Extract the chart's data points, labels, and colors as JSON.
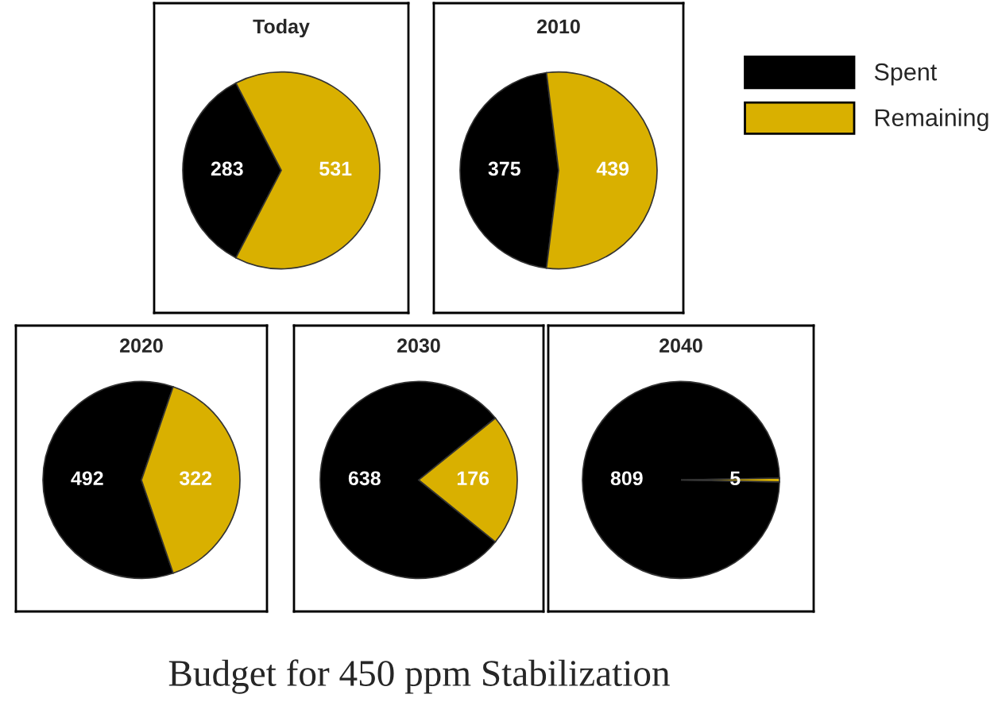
{
  "chart_data": [
    {
      "type": "pie",
      "title": "Today",
      "categories": [
        "Spent",
        "Remaining"
      ],
      "values": [
        283,
        531
      ],
      "colors": [
        "#000000",
        "#d9b000"
      ],
      "data_labels": true,
      "legend": "right",
      "annotations": [
        "Budget for 450 ppm Stabilization"
      ]
    },
    {
      "type": "pie",
      "title": "2010",
      "values": [
        375,
        439
      ],
      "colors": [
        "#000000",
        "#d9b000"
      ],
      "data_labels": true
    },
    {
      "type": "pie",
      "title": "2020",
      "values": [
        492,
        322
      ],
      "colors": [
        "#000000",
        "#d9b000"
      ],
      "data_labels": true
    },
    {
      "type": "pie",
      "title": "2030",
      "values": [
        638,
        176
      ],
      "colors": [
        "#000000",
        "#d9b000"
      ],
      "data_labels": true
    },
    {
      "type": "pie",
      "title": "2040",
      "values": [
        809,
        5
      ],
      "colors": [
        "#000000",
        "#d9b000"
      ],
      "data_labels": true
    }
  ]
}
